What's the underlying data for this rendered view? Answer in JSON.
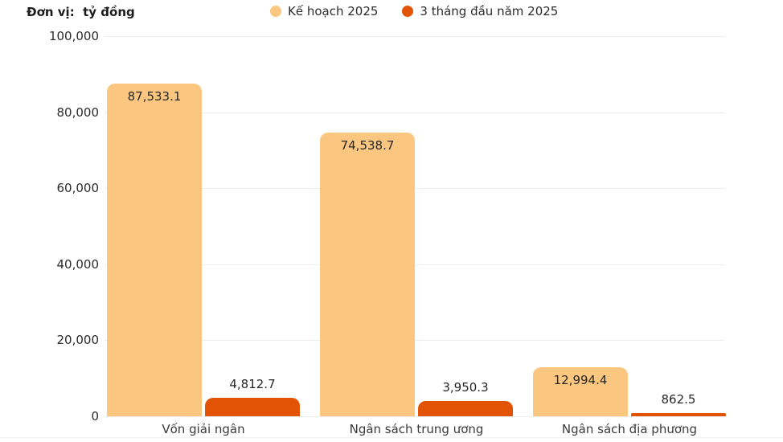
{
  "header": {
    "unit_label": "Đơn vị:  tỷ đồng"
  },
  "legend": {
    "position": "top",
    "items": [
      {
        "label": "Kế hoạch 2025",
        "color": "#FBC780"
      },
      {
        "label": "3 tháng đầu năm 2025",
        "color": "#E35305"
      }
    ]
  },
  "chart_data": {
    "type": "bar",
    "title": "",
    "xlabel": "",
    "ylabel": "tỷ đồng",
    "unit_note": "Đơn vị:  tỷ đồng",
    "grid": true,
    "legend_position": "top",
    "ylim": [
      0,
      100000
    ],
    "yticks": [
      {
        "value": 0,
        "label": "0"
      },
      {
        "value": 20000,
        "label": "20,000"
      },
      {
        "value": 40000,
        "label": "40,000"
      },
      {
        "value": 60000,
        "label": "60,000"
      },
      {
        "value": 80000,
        "label": "80,000"
      },
      {
        "value": 100000,
        "label": "100,000"
      }
    ],
    "categories": [
      "Vốn giải ngân",
      "Ngân sách trung ương",
      "Ngân sách địa phương"
    ],
    "series": [
      {
        "name": "Kế hoạch 2025",
        "color": "#FBC780",
        "values": [
          87533.1,
          74538.7,
          12994.4
        ],
        "labels": [
          "87,533.1",
          "74,538.7",
          "12,994.4"
        ]
      },
      {
        "name": "3 tháng đầu năm 2025",
        "color": "#E35305",
        "values": [
          4812.7,
          3950.3,
          862.5
        ],
        "labels": [
          "4,812.7",
          "3,950.3",
          "862.5"
        ]
      }
    ]
  },
  "colors": {
    "plan_bar": "#FBC780",
    "actual_bar": "#E35305",
    "gridline": "#ececec",
    "text": "#2b2b2b"
  }
}
